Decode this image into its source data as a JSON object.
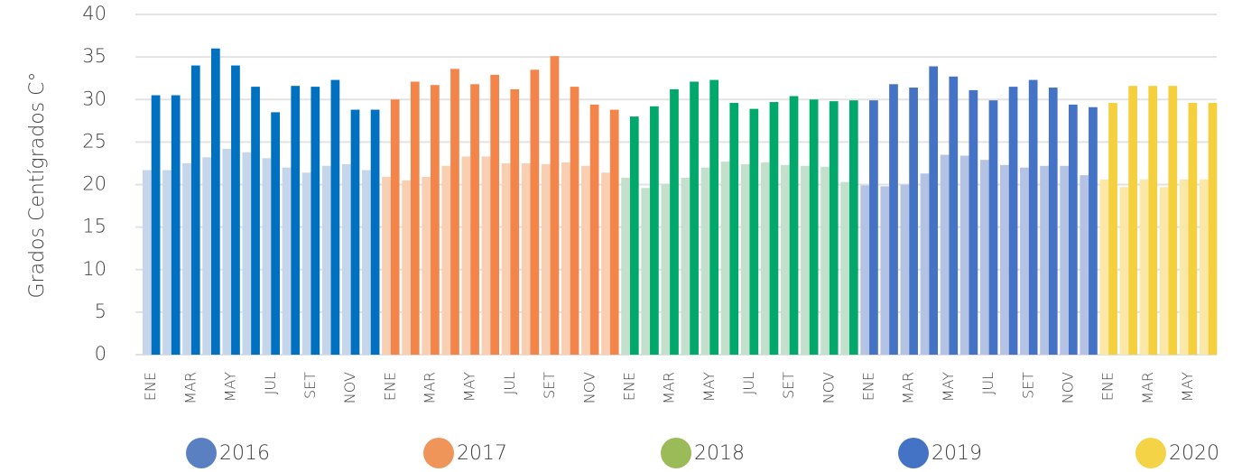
{
  "chart_data": {
    "type": "bar",
    "y_label": "Grados Centígrados C°",
    "ylim": [
      0,
      40
    ],
    "yticks": [
      0,
      5,
      10,
      15,
      20,
      25,
      30,
      35,
      40
    ],
    "grid": true,
    "series": [
      {
        "name": "2016",
        "legend_color": "#5b80c2",
        "color": "#0070c0",
        "light_color": "#c5d5ea",
        "categories": [
          "ENE",
          null,
          "MAR",
          null,
          "MAY",
          null,
          "JUL",
          null,
          "SET",
          null,
          "NOV",
          null
        ],
        "max": [
          30.5,
          30.5,
          34,
          36,
          34,
          31.5,
          28.5,
          31.6,
          31.5,
          32.3,
          28.8,
          28.8
        ],
        "min": [
          21.7,
          21.7,
          22.5,
          23.2,
          24.2,
          23.8,
          23.1,
          22,
          21.4,
          22.2,
          22.4,
          21.7
        ]
      },
      {
        "name": "2017",
        "legend_color": "#f0955a",
        "color": "#f4854a",
        "light_color": "#f9cfb3",
        "categories": [
          "ENE",
          null,
          "MAR",
          null,
          "MAY",
          null,
          "JUL",
          null,
          "SET",
          null,
          "NOV",
          null
        ],
        "max": [
          30,
          32.1,
          31.7,
          33.6,
          31.8,
          32.9,
          31.2,
          33.5,
          35.1,
          31.5,
          29.4,
          28.8
        ],
        "min": [
          20.9,
          20.5,
          20.9,
          22.2,
          23.3,
          23.3,
          22.5,
          22.5,
          22.4,
          22.6,
          22.2,
          21.4
        ]
      },
      {
        "name": "2018",
        "legend_color": "#9bbb59",
        "color": "#00a86b",
        "light_color": "#c2e0cc",
        "categories": [
          "ENE",
          null,
          "MAR",
          null,
          "MAY",
          null,
          "JUL",
          null,
          "SET",
          null,
          "NOV",
          null
        ],
        "max": [
          28,
          29.2,
          31.2,
          32.1,
          32.3,
          29.6,
          28.9,
          29.7,
          30.4,
          30,
          29.8,
          29.9
        ],
        "min": [
          20.8,
          19.6,
          20.1,
          20.8,
          22,
          22.7,
          22.4,
          22.6,
          22.3,
          22.2,
          22.1,
          20.3
        ]
      },
      {
        "name": "2019",
        "legend_color": "#4472c4",
        "color": "#4472c4",
        "light_color": "#b4c3e4",
        "categories": [
          "ENE",
          null,
          "MAR",
          null,
          "MAY",
          null,
          "JUL",
          null,
          "SET",
          null,
          "NOV",
          null
        ],
        "max": [
          29.9,
          31.8,
          31.4,
          33.9,
          32.7,
          31.1,
          29.9,
          31.5,
          32.3,
          31.4,
          29.4,
          29.1
        ],
        "min": [
          19.9,
          19.8,
          20,
          21.3,
          23.5,
          23.4,
          22.9,
          22.3,
          22,
          22.2,
          22.2,
          21.1
        ]
      },
      {
        "name": "2020",
        "legend_color": "#f4d346",
        "color": "#f4d03f",
        "light_color": "#fbe8a6",
        "categories": [
          "ENE",
          null,
          "MAR",
          null,
          "MAY",
          null
        ],
        "max": [
          29.6,
          31.6,
          31.6,
          31.6,
          29.6,
          29.6
        ],
        "min": [
          20.6,
          19.7,
          20.6,
          19.7,
          20.6,
          20.6
        ]
      }
    ]
  }
}
